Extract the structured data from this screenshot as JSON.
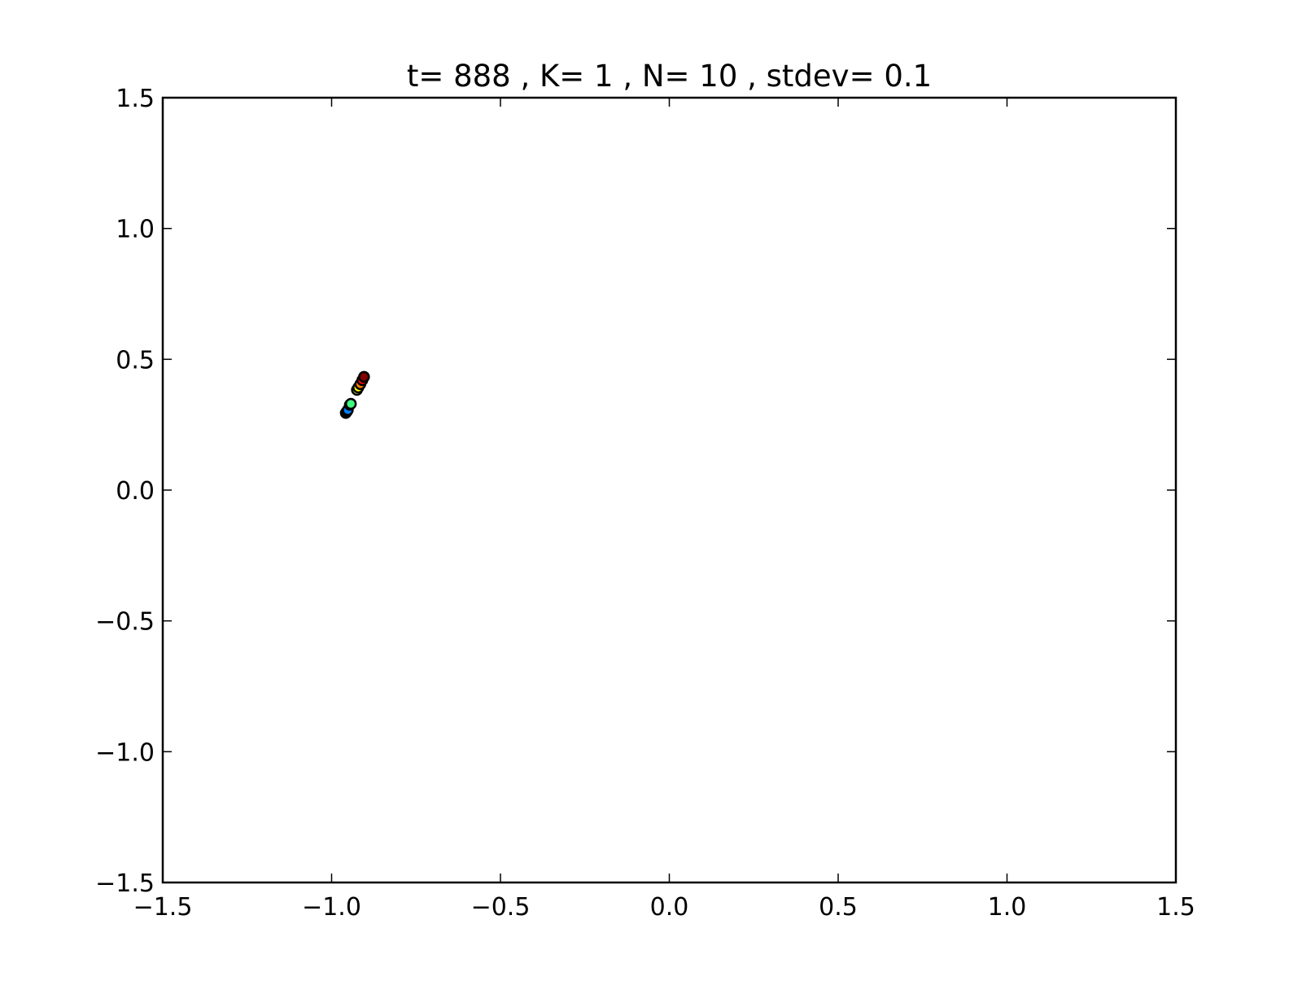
{
  "chart_data": {
    "type": "scatter",
    "title": "t= 888 , K= 1 , N= 10 , stdev= 0.1",
    "xlabel": "",
    "ylabel": "",
    "xlim": [
      -1.5,
      1.5
    ],
    "ylim": [
      -1.5,
      1.5
    ],
    "grid": false,
    "xticks": [
      -1.5,
      -1.0,
      -0.5,
      0.0,
      0.5,
      1.0,
      1.5
    ],
    "xtick_labels": [
      "−1.5",
      "−1.0",
      "−0.5",
      "0.0",
      "0.5",
      "1.0",
      "1.5"
    ],
    "yticks": [
      -1.5,
      -1.0,
      -0.5,
      0.0,
      0.5,
      1.0,
      1.5
    ],
    "ytick_labels": [
      "−1.5",
      "−1.0",
      "−0.5",
      "0.0",
      "0.5",
      "1.0",
      "1.5"
    ],
    "points": [
      {
        "x": -0.958,
        "y": 0.295,
        "color": "#000080"
      },
      {
        "x": -0.955,
        "y": 0.3,
        "color": "#0000ff"
      },
      {
        "x": -0.952,
        "y": 0.306,
        "color": "#0080ff"
      },
      {
        "x": -0.946,
        "y": 0.326,
        "color": "#00ffff"
      },
      {
        "x": -0.943,
        "y": 0.33,
        "color": "#40ff80"
      },
      {
        "x": -0.925,
        "y": 0.383,
        "color": "#c0ff40"
      },
      {
        "x": -0.921,
        "y": 0.392,
        "color": "#ffff00"
      },
      {
        "x": -0.915,
        "y": 0.405,
        "color": "#ff8000"
      },
      {
        "x": -0.909,
        "y": 0.42,
        "color": "#ff0000"
      },
      {
        "x": -0.904,
        "y": 0.433,
        "color": "#800000"
      }
    ]
  }
}
